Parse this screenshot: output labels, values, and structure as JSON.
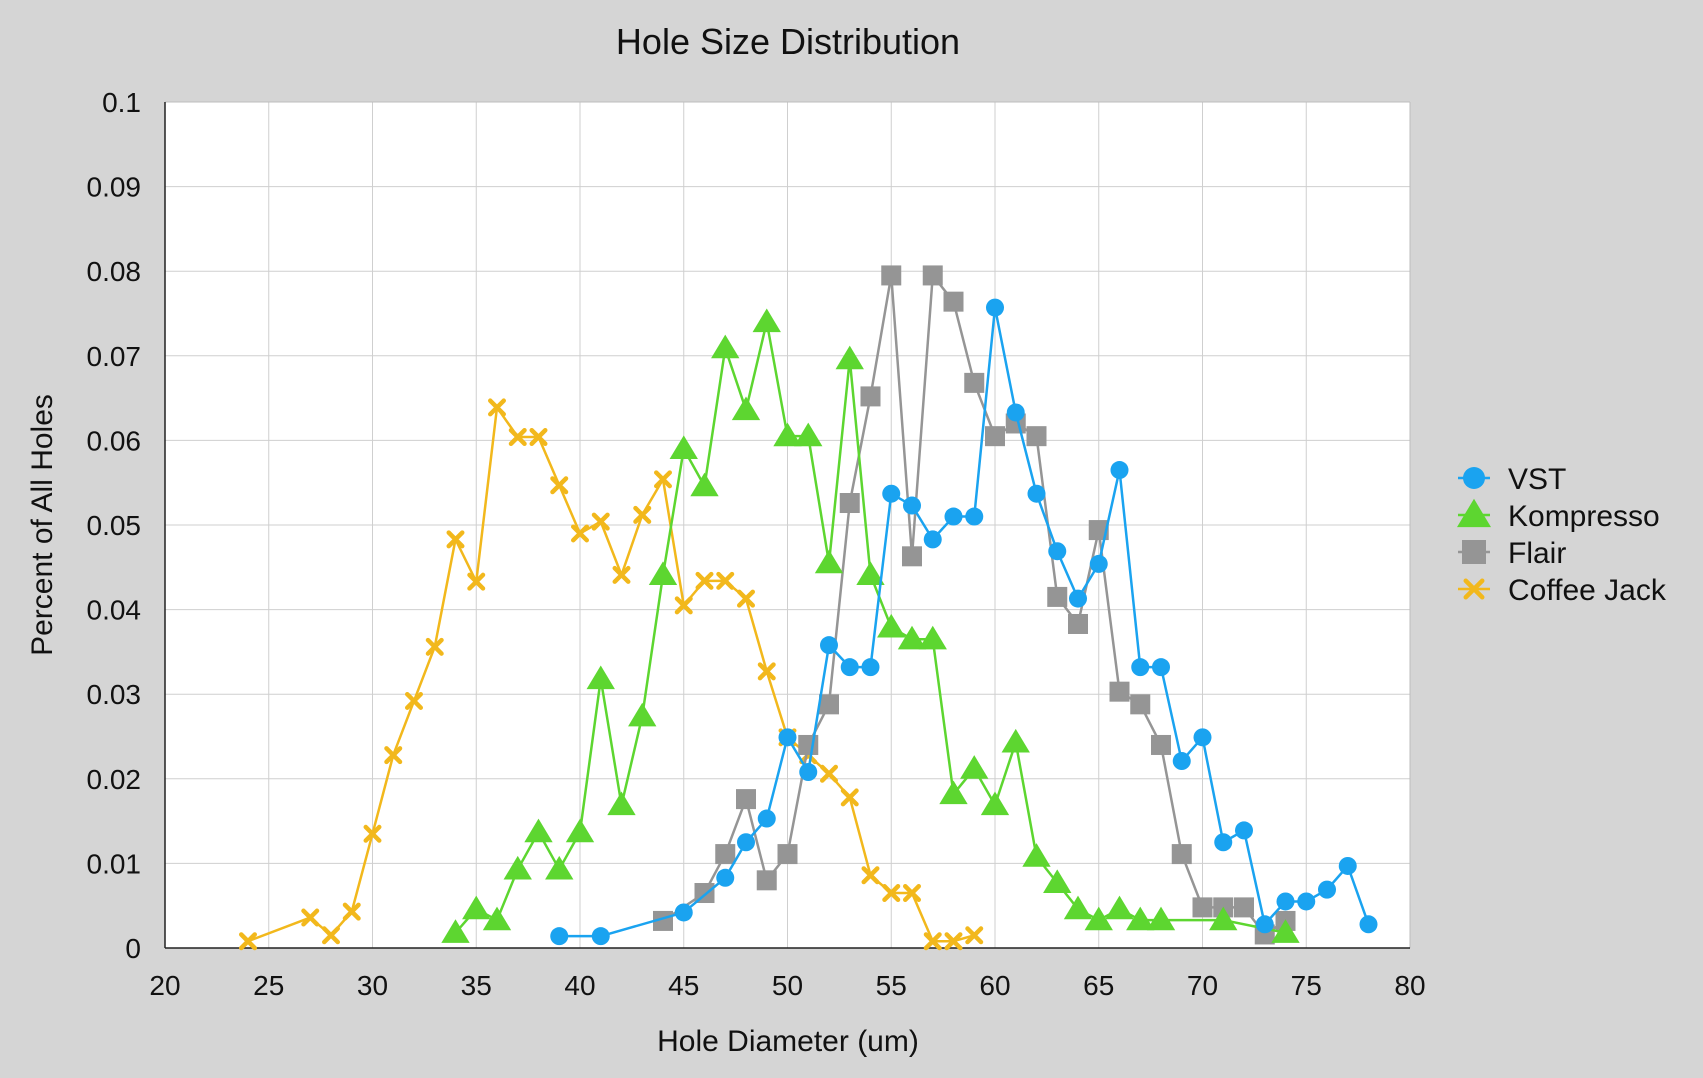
{
  "chart_data": {
    "type": "line",
    "title": "Hole Size Distribution",
    "xlabel": "Hole Diameter (um)",
    "ylabel": "Percent of All Holes",
    "xlim": [
      20,
      80
    ],
    "ylim": [
      0,
      0.1
    ],
    "xticks": [
      20,
      25,
      30,
      35,
      40,
      45,
      50,
      55,
      60,
      65,
      70,
      75,
      80
    ],
    "yticks": [
      0,
      0.01,
      0.02,
      0.03,
      0.04,
      0.05,
      0.06,
      0.07,
      0.08,
      0.09,
      0.1
    ],
    "xtick_labels": [
      "20",
      "25",
      "30",
      "35",
      "40",
      "45",
      "50",
      "55",
      "60",
      "65",
      "70",
      "75",
      "80"
    ],
    "ytick_labels": [
      "0",
      "0.01",
      "0.02",
      "0.03",
      "0.04",
      "0.05",
      "0.06",
      "0.07",
      "0.08",
      "0.09",
      "0.1"
    ],
    "grid": true,
    "legend_position": "right",
    "series": [
      {
        "name": "VST",
        "color": "#1aa3f0",
        "marker": "circle",
        "x": [
          39,
          41,
          45,
          47,
          48,
          49,
          50,
          51,
          52,
          53,
          54,
          55,
          56,
          57,
          58,
          59,
          60,
          61,
          62,
          63,
          64,
          65,
          66,
          67,
          68,
          69,
          70,
          71,
          72,
          73,
          74,
          75,
          76,
          77,
          78
        ],
        "y": [
          0.0014,
          0.0014,
          0.0042,
          0.0083,
          0.0125,
          0.0153,
          0.0249,
          0.0208,
          0.0358,
          0.0332,
          0.0332,
          0.0537,
          0.0523,
          0.0483,
          0.051,
          0.051,
          0.0757,
          0.0633,
          0.0537,
          0.0469,
          0.0413,
          0.0454,
          0.0565,
          0.0332,
          0.0332,
          0.0221,
          0.0249,
          0.0125,
          0.0139,
          0.0028,
          0.0055,
          0.0055,
          0.0069,
          0.0097,
          0.0028
        ]
      },
      {
        "name": "Kompresso",
        "color": "#5dd630",
        "marker": "triangle",
        "x": [
          34,
          35,
          36,
          37,
          38,
          39,
          40,
          41,
          42,
          43,
          44,
          45,
          46,
          47,
          48,
          49,
          50,
          51,
          52,
          53,
          54,
          55,
          56,
          57,
          58,
          59,
          60,
          61,
          62,
          63,
          64,
          65,
          66,
          67,
          68,
          71,
          74
        ],
        "y": [
          0.0018,
          0.0046,
          0.0033,
          0.0093,
          0.0137,
          0.0093,
          0.0137,
          0.0318,
          0.0169,
          0.0274,
          0.0441,
          0.059,
          0.0546,
          0.0709,
          0.0636,
          0.074,
          0.0605,
          0.0605,
          0.0455,
          0.0696,
          0.0441,
          0.0379,
          0.0365,
          0.0365,
          0.0182,
          0.0212,
          0.0169,
          0.0243,
          0.0108,
          0.0077,
          0.0046,
          0.0033,
          0.0046,
          0.0033,
          0.0033,
          0.0033,
          0.0018
        ]
      },
      {
        "name": "Flair",
        "color": "#959595",
        "marker": "square",
        "x": [
          44,
          46,
          47,
          48,
          49,
          50,
          51,
          52,
          53,
          54,
          55,
          56,
          57,
          58,
          59,
          60,
          61,
          62,
          63,
          64,
          65,
          66,
          67,
          68,
          69,
          70,
          71,
          72,
          73,
          74
        ],
        "y": [
          0.0032,
          0.0065,
          0.0111,
          0.0176,
          0.008,
          0.0111,
          0.024,
          0.0288,
          0.0526,
          0.0652,
          0.0795,
          0.0463,
          0.0795,
          0.0764,
          0.0668,
          0.0605,
          0.062,
          0.0605,
          0.0415,
          0.0383,
          0.0494,
          0.0303,
          0.0288,
          0.024,
          0.0111,
          0.0048,
          0.0048,
          0.0048,
          0.0016,
          0.0032
        ]
      },
      {
        "name": "Coffee Jack",
        "color": "#f2b81c",
        "marker": "x",
        "x": [
          24,
          27,
          28,
          29,
          30,
          31,
          32,
          33,
          34,
          35,
          36,
          37,
          38,
          39,
          40,
          41,
          42,
          43,
          44,
          45,
          46,
          47,
          48,
          49,
          50,
          51,
          52,
          53,
          54,
          55,
          56,
          57,
          58,
          59
        ],
        "y": [
          0.0008,
          0.0036,
          0.0015,
          0.0043,
          0.0135,
          0.0228,
          0.0292,
          0.0356,
          0.0483,
          0.0433,
          0.0639,
          0.0604,
          0.0604,
          0.0547,
          0.049,
          0.0504,
          0.0441,
          0.0512,
          0.0554,
          0.0405,
          0.0434,
          0.0434,
          0.0413,
          0.0327,
          0.0249,
          0.0228,
          0.0206,
          0.0178,
          0.0086,
          0.0065,
          0.0065,
          0.0008,
          0.0008,
          0.0015
        ]
      }
    ]
  }
}
